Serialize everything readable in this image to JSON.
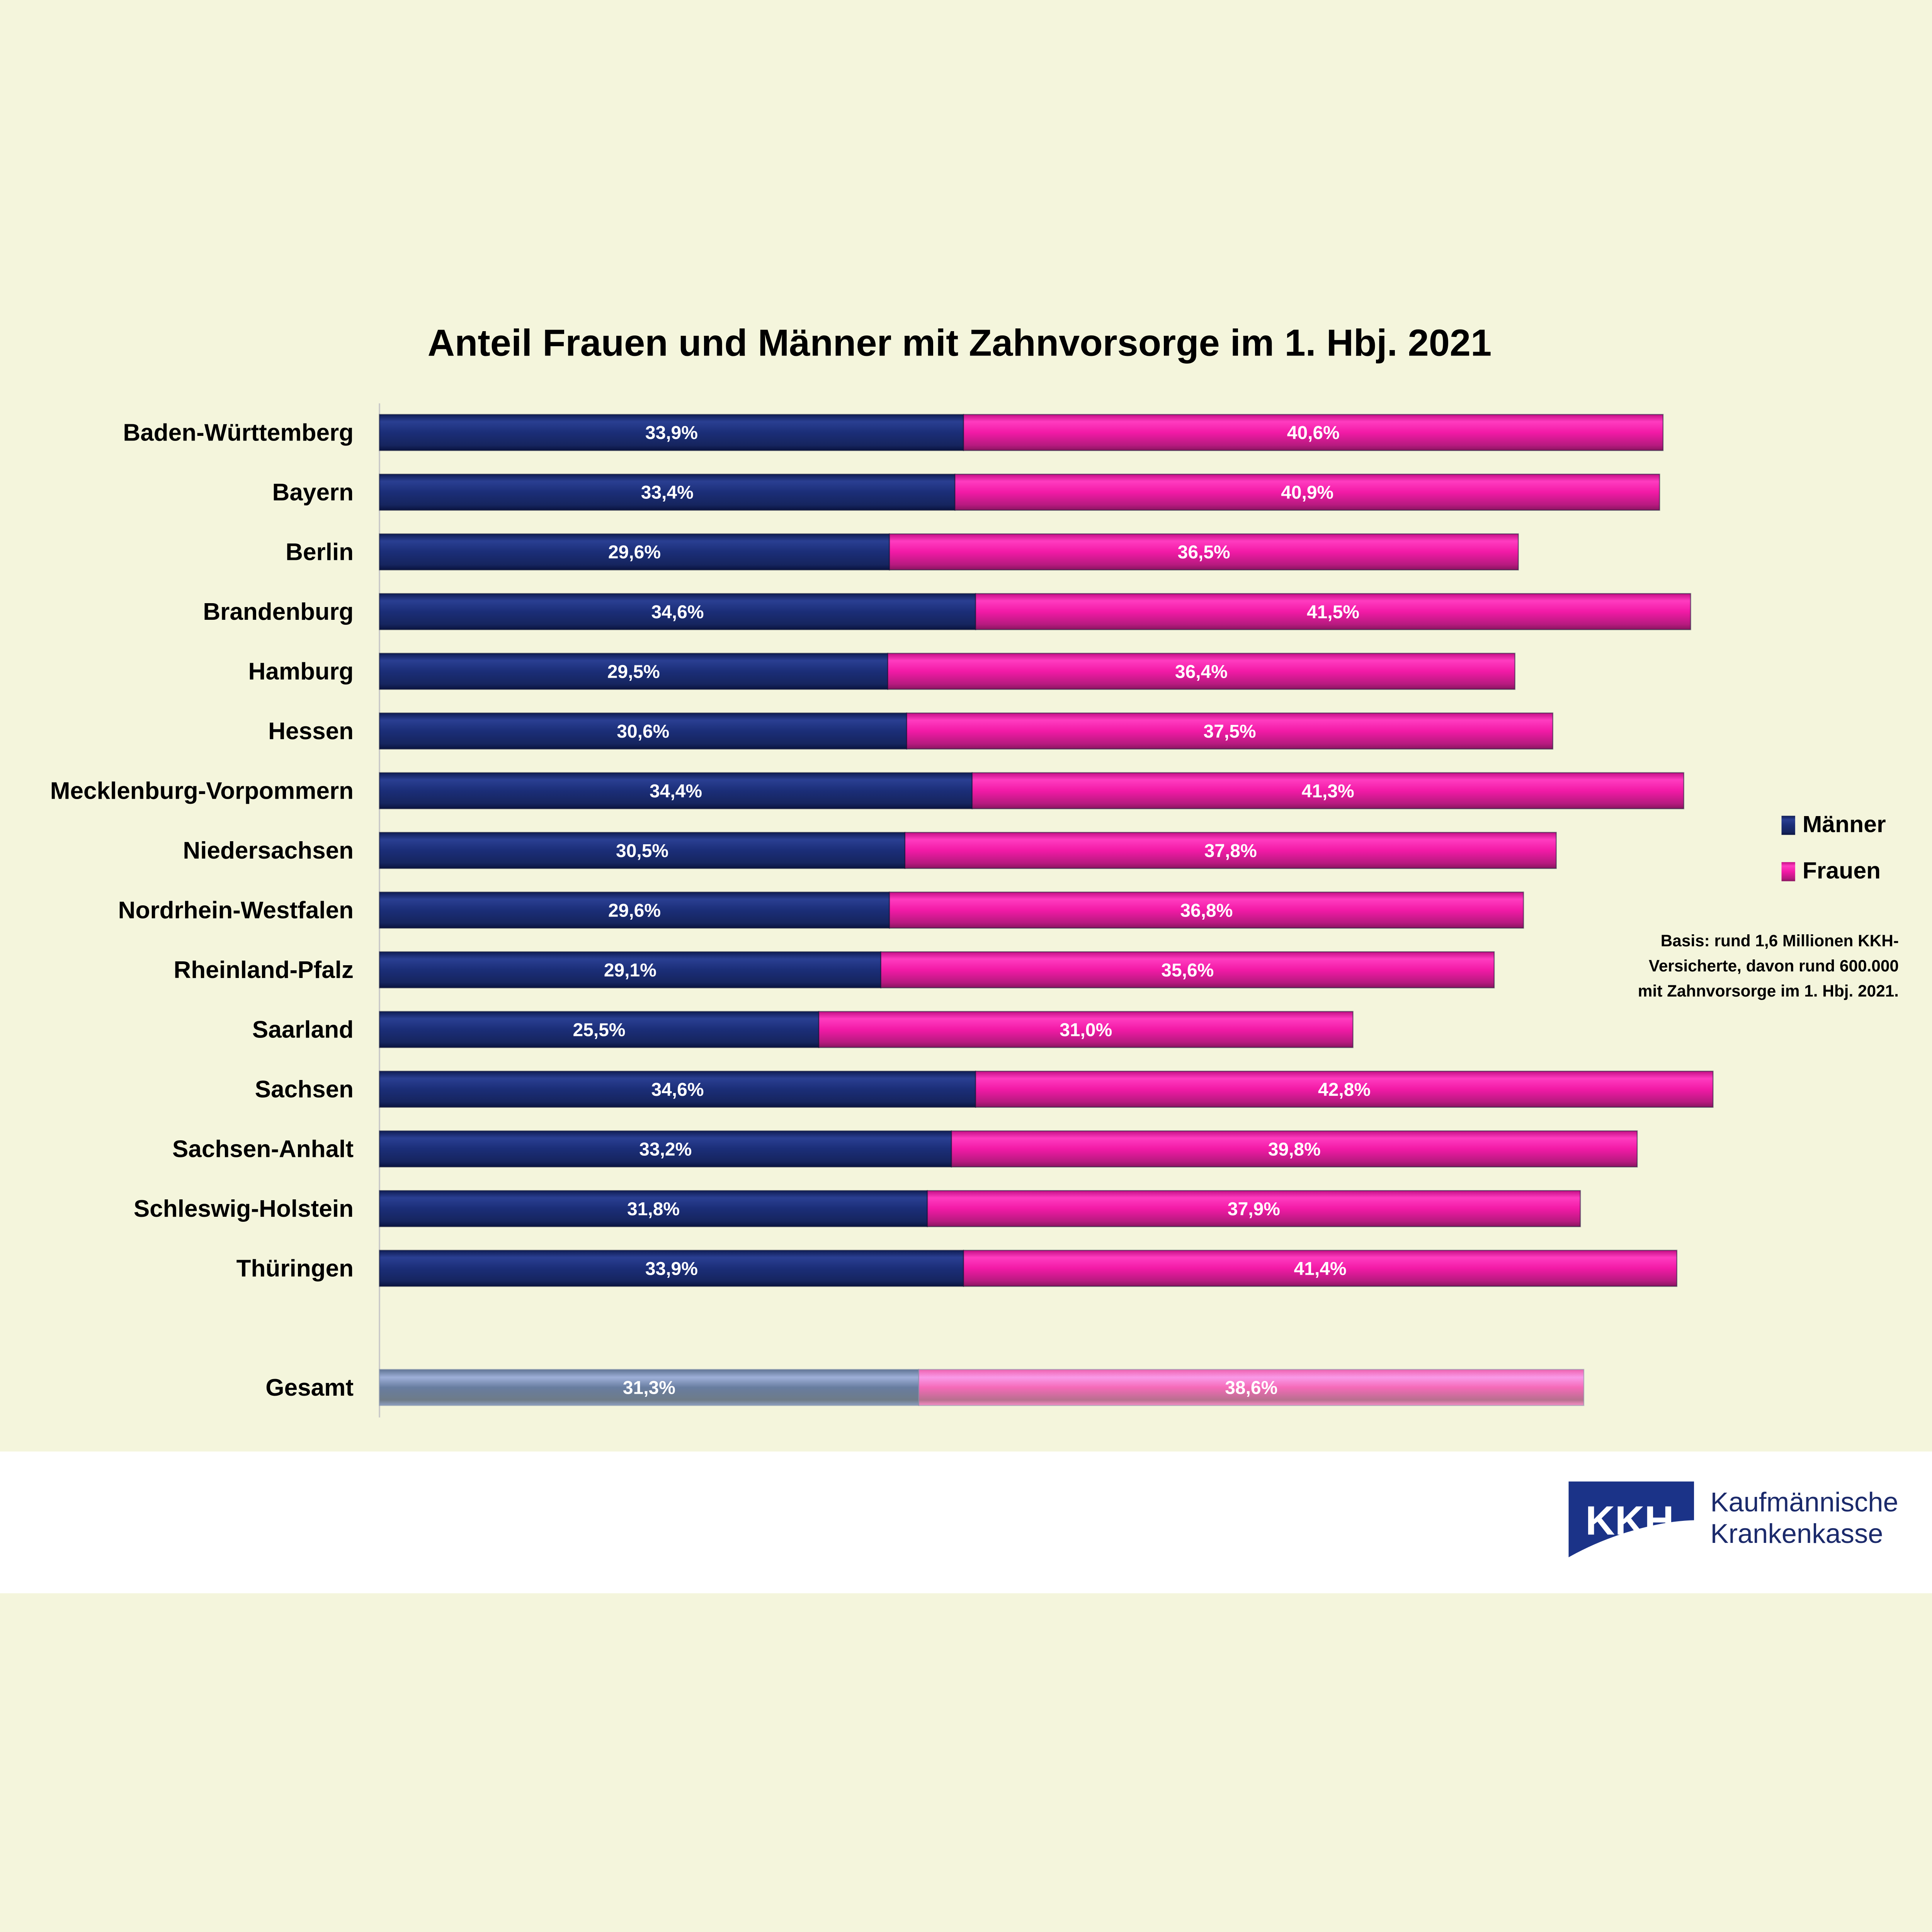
{
  "chart_data": {
    "type": "bar",
    "orientation": "horizontal",
    "stacked": true,
    "title": "Anteil Frauen und Männer mit Zahnvorsorge im 1. Hbj. 2021",
    "categories": [
      "Baden-Württemberg",
      "Bayern",
      "Berlin",
      "Brandenburg",
      "Hamburg",
      "Hessen",
      "Mecklenburg-Vorpommern",
      "Niedersachsen",
      "Nordrhein-Westfalen",
      "Rheinland-Pfalz",
      "Saarland",
      "Sachsen",
      "Sachsen-Anhalt",
      "Schleswig-Holstein",
      "Thüringen",
      "Gesamt"
    ],
    "series": [
      {
        "name": "Männer",
        "color": "#1a2f7a",
        "values": [
          33.9,
          33.4,
          29.6,
          34.6,
          29.5,
          30.6,
          34.4,
          30.5,
          29.6,
          29.1,
          25.5,
          34.6,
          33.2,
          31.8,
          33.9,
          31.3
        ],
        "labels": [
          "33,9%",
          "33,4%",
          "29,6%",
          "34,6%",
          "29,5%",
          "30,6%",
          "34,4%",
          "30,5%",
          "29,6%",
          "29,1%",
          "25,5%",
          "34,6%",
          "33,2%",
          "31,8%",
          "33,9%",
          "31,3%"
        ]
      },
      {
        "name": "Frauen",
        "color": "#f21aa6",
        "values": [
          40.6,
          40.9,
          36.5,
          41.5,
          36.4,
          37.5,
          41.3,
          37.8,
          36.8,
          35.6,
          31.0,
          42.8,
          39.8,
          37.9,
          41.4,
          38.6
        ],
        "labels": [
          "40,6%",
          "40,9%",
          "36,5%",
          "41,5%",
          "36,4%",
          "37,5%",
          "41,3%",
          "37,8%",
          "36,8%",
          "35,6%",
          "31,0%",
          "42,8%",
          "39,8%",
          "37,9%",
          "41,4%",
          "38,6%"
        ]
      }
    ],
    "total_colors": {
      "Männer": "#687da0",
      "Frauen": "#f56ab8"
    },
    "legend_position": "right",
    "grid": false,
    "xlim": [
      0,
      80
    ]
  },
  "note": [
    "Basis: rund 1,6 Millionen KKH-",
    "Versicherte, davon rund 600.000",
    "mit Zahnvorsorge im 1. Hbj. 2021."
  ],
  "logo": {
    "mark": "KKH",
    "line1": "Kaufmännische",
    "line2": "Krankenkasse"
  },
  "colors": {
    "background": "#f4f5dc"
  }
}
